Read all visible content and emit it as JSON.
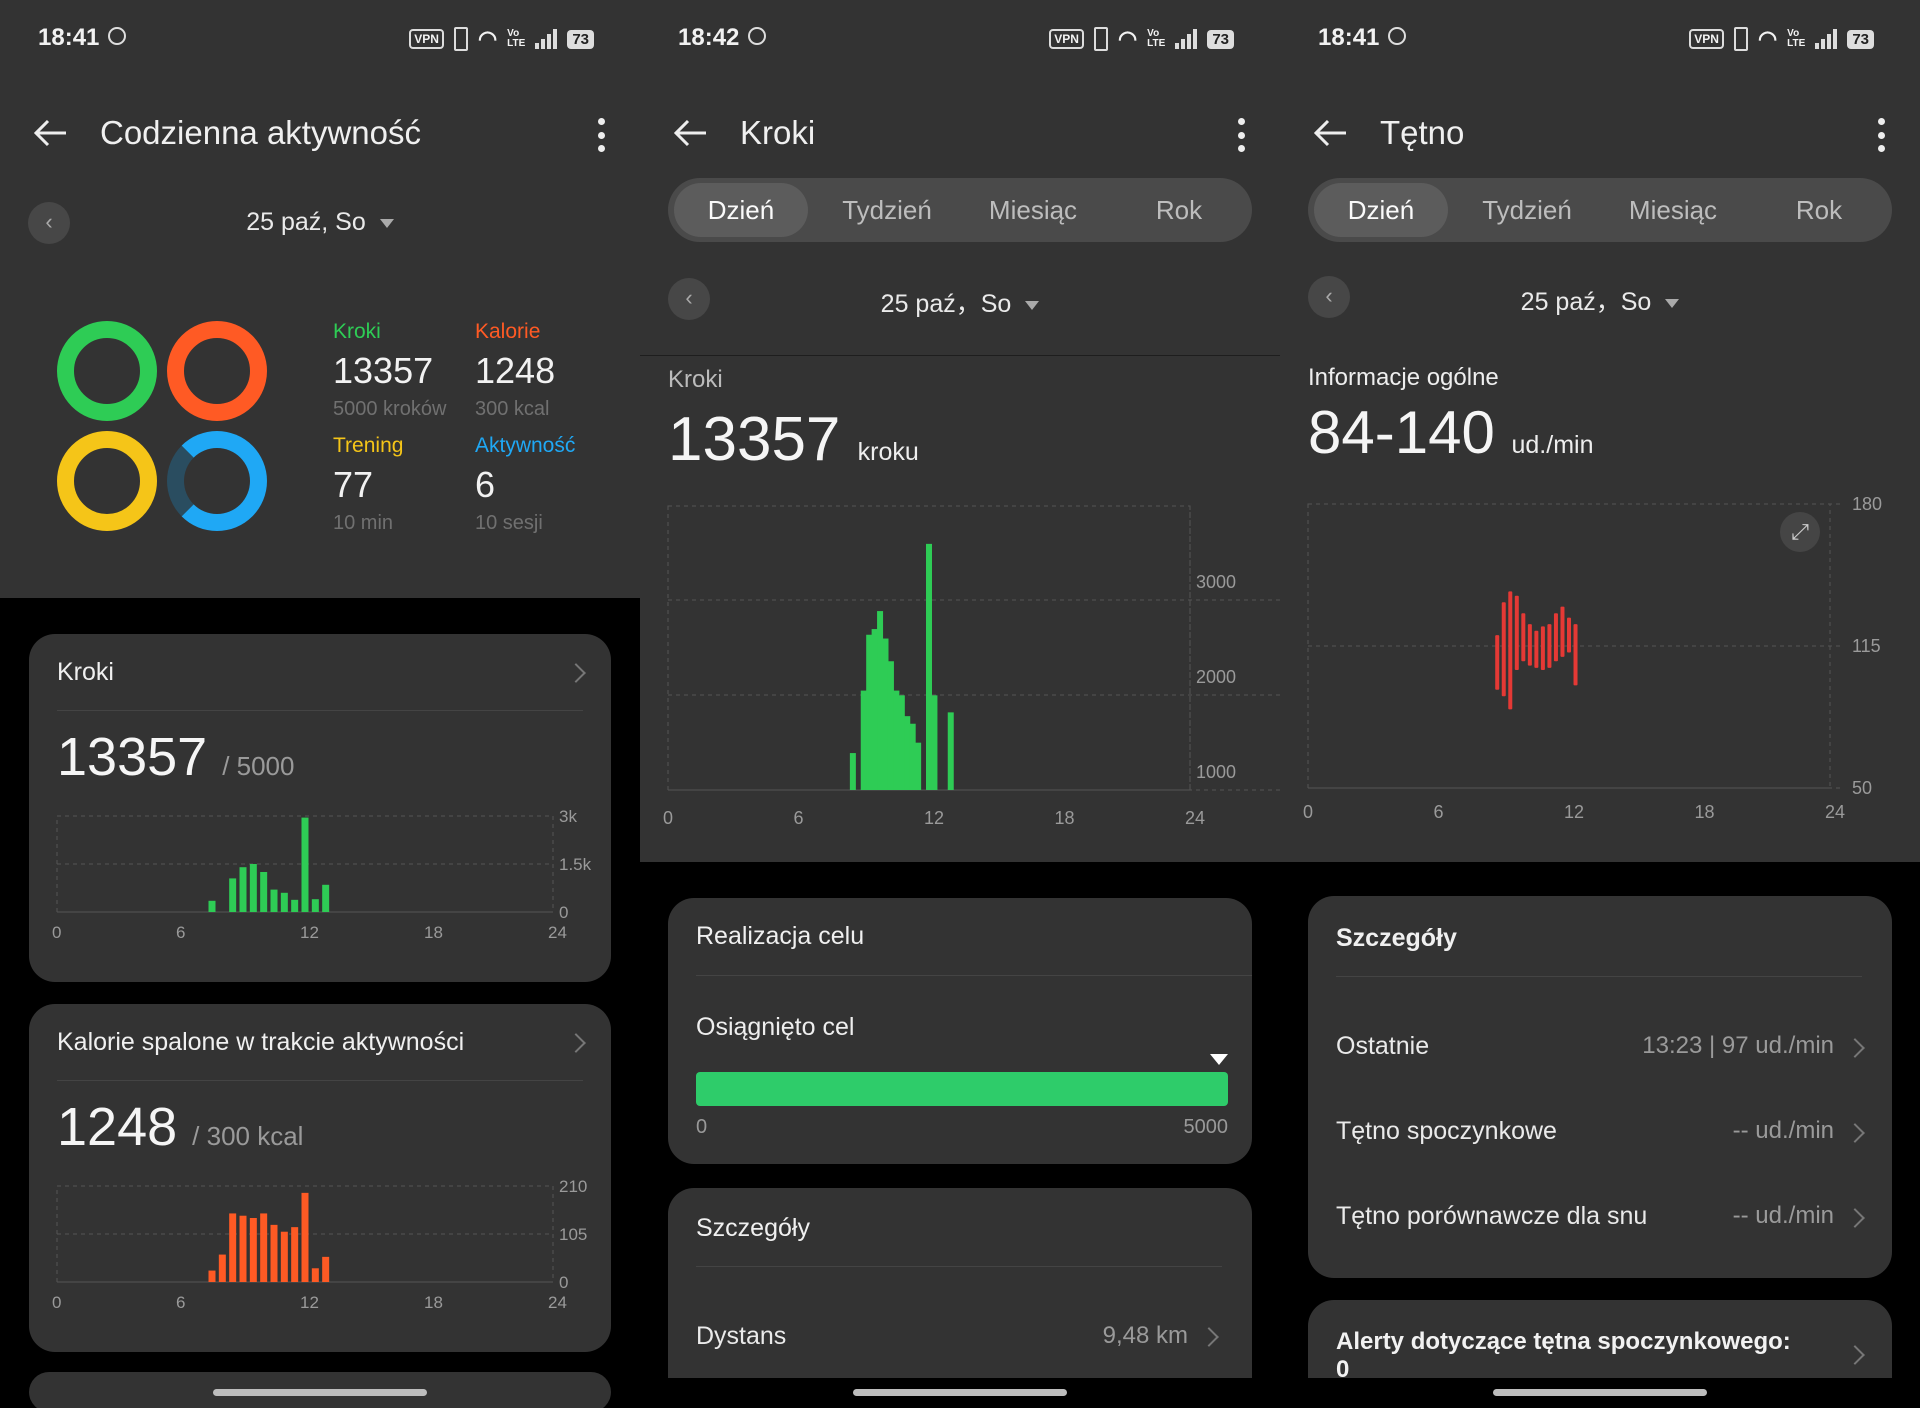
{
  "status_bars": [
    {
      "time": "18:41",
      "battery": "73"
    },
    {
      "time": "18:42",
      "battery": "73"
    },
    {
      "time": "18:41",
      "battery": "73"
    }
  ],
  "status_icons": {
    "vpn": "VPN",
    "volte_top": "Vo",
    "volte_bottom": "LTE"
  },
  "screen1": {
    "title": "Codzienna aktywność",
    "date": "25 paź, So",
    "stats": [
      {
        "label": "Kroki",
        "value": "13357",
        "sub": "5000 kroków",
        "color": "#2ecc55"
      },
      {
        "label": "Kalorie",
        "value": "1248",
        "sub": "300 kcal",
        "color": "#ff5a24"
      },
      {
        "label": "Trening",
        "value": "77",
        "sub": "10 min",
        "color": "#f5c518"
      },
      {
        "label": "Aktywność",
        "value": "6",
        "sub": "10 sesji",
        "color": "#1fa8f5"
      }
    ],
    "steps_card": {
      "title": "Kroki",
      "value": "13357",
      "goal": "/ 5000",
      "y_ticks": [
        "3k",
        "1.5k",
        "0"
      ],
      "x_ticks": [
        "0",
        "6",
        "12",
        "18",
        "24"
      ]
    },
    "calories_card": {
      "title": "Kalorie spalone w trakcie aktywności",
      "value": "1248",
      "goal": "/ 300 kcal",
      "y_ticks": [
        "210",
        "105",
        "0"
      ],
      "x_ticks": [
        "0",
        "6",
        "12",
        "18",
        "24"
      ]
    }
  },
  "screen2": {
    "title": "Kroki",
    "tabs": [
      "Dzień",
      "Tydzień",
      "Miesiąc",
      "Rok"
    ],
    "date": "25 paź，So",
    "section_label": "Kroki",
    "value": "13357",
    "unit": "kroku",
    "y_ticks": [
      "3000",
      "2000",
      "1000"
    ],
    "x_ticks": [
      "0",
      "6",
      "12",
      "18",
      "24"
    ],
    "goal_card": {
      "title": "Realizacja celu",
      "status": "Osiągnięto cel",
      "min": "0",
      "max": "5000",
      "progress": 1.0
    },
    "details_card": {
      "title": "Szczegóły",
      "rows": [
        {
          "label": "Dystans",
          "value": "9,48 km"
        }
      ]
    }
  },
  "screen3": {
    "title": "Tętno",
    "tabs": [
      "Dzień",
      "Tydzień",
      "Miesiąc",
      "Rok"
    ],
    "date": "25 paź，So",
    "section_label": "Informacje ogólne",
    "value": "84-140",
    "unit": "ud./min",
    "y_ticks": [
      "180",
      "115",
      "50"
    ],
    "x_ticks": [
      "0",
      "6",
      "12",
      "18",
      "24"
    ],
    "details_card": {
      "title": "Szczegóły",
      "rows": [
        {
          "label": "Ostatnie",
          "value": "13:23 | 97 ud./min"
        },
        {
          "label": "Tętno spoczynkowe",
          "value": "-- ud./min"
        },
        {
          "label": "Tętno porównawcze dla snu",
          "value": "-- ud./min"
        }
      ]
    },
    "alert_card": {
      "title": "Alerty dotyczące tętna spoczynkowego:",
      "value": "0"
    }
  },
  "chart_data": [
    {
      "type": "bar",
      "title": "Kroki",
      "x": [
        7.5,
        8.5,
        9,
        9.5,
        10,
        10.5,
        11,
        11.5,
        12,
        12.5,
        13
      ],
      "values": [
        350,
        1050,
        1400,
        1500,
        1250,
        700,
        600,
        380,
        2950,
        400,
        850
      ],
      "xlim": [
        0,
        24
      ],
      "ylim": [
        0,
        3000
      ],
      "color": "#2ecc55"
    },
    {
      "type": "bar",
      "title": "Kalorie spalone w trakcie aktywności",
      "x": [
        7.5,
        8,
        8.5,
        9,
        9.5,
        10,
        10.5,
        11,
        11.5,
        12,
        12.5,
        13
      ],
      "values": [
        25,
        60,
        150,
        145,
        140,
        150,
        125,
        110,
        120,
        195,
        30,
        55
      ],
      "xlim": [
        0,
        24
      ],
      "ylim": [
        0,
        210
      ],
      "color": "#ff5a24"
    },
    {
      "type": "bar",
      "title": "Kroki",
      "x": [
        8.5,
        9,
        9.25,
        9.5,
        9.75,
        10,
        10.25,
        10.5,
        10.75,
        11,
        11.25,
        11.5,
        12,
        12.25,
        13
      ],
      "values": [
        390,
        1050,
        1640,
        1700,
        1890,
        1600,
        1360,
        1050,
        1000,
        780,
        700,
        500,
        2600,
        1000,
        820
      ],
      "xlim": [
        0,
        24
      ],
      "ylim": [
        0,
        3000
      ],
      "color": "#2ecc55"
    },
    {
      "type": "bar",
      "title": "Tętno",
      "ranges": [
        [
          8.7,
          95,
          120
        ],
        [
          9.0,
          92,
          135
        ],
        [
          9.3,
          86,
          140
        ],
        [
          9.6,
          104,
          138
        ],
        [
          9.9,
          108,
          130
        ],
        [
          10.2,
          106,
          125
        ],
        [
          10.5,
          105,
          122
        ],
        [
          10.8,
          104,
          124
        ],
        [
          11.1,
          105,
          125
        ],
        [
          11.4,
          108,
          130
        ],
        [
          11.7,
          110,
          133
        ],
        [
          12.0,
          112,
          128
        ],
        [
          12.3,
          97,
          125
        ]
      ],
      "xlim": [
        0,
        24
      ],
      "ylim": [
        50,
        180
      ],
      "color": "#e53935"
    }
  ]
}
